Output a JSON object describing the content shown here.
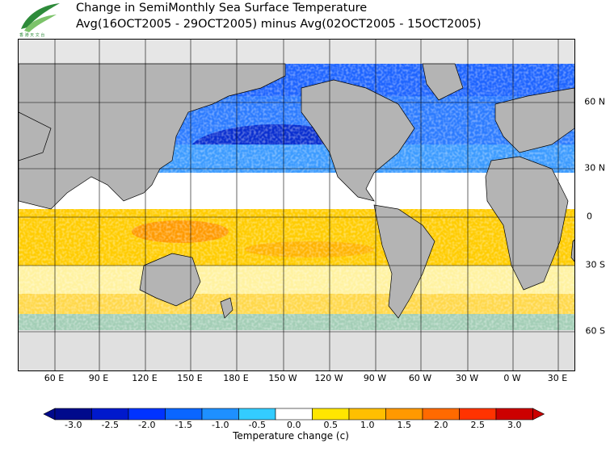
{
  "title_line1": "Change in SemiMonthly Sea Surface Temperature",
  "title_line2": "Avg(16OCT2005 - 29OCT2005) minus Avg(02OCT2005 - 15OCT2005)",
  "lon_ticks": [
    "60 E",
    "90 E",
    "120 E",
    "150 E",
    "180 E",
    "150 W",
    "120 W",
    "90 W",
    "60 W",
    "30 W",
    "0 W",
    "30 E"
  ],
  "lat_ticks": [
    "60 N",
    "30 N",
    "0",
    "30 S",
    "60 S"
  ],
  "colorbar": {
    "title": "Temperature change  (c)",
    "labels": [
      "-3.0",
      "-2.5",
      "-2.0",
      "-1.5",
      "-1.0",
      "-0.5",
      "0.0",
      "0.5",
      "1.0",
      "1.5",
      "2.0",
      "2.5",
      "3.0"
    ],
    "colors": [
      "#000a8c",
      "#0019cc",
      "#0033ff",
      "#0a66ff",
      "#1e90ff",
      "#33ccff",
      "#ffffff",
      "#ffe600",
      "#ffbf00",
      "#ff9900",
      "#ff6a00",
      "#ff3300",
      "#cc0000"
    ]
  },
  "colors": {
    "land": "#b4b4b4",
    "ice": "#e0e0e0",
    "grid": "#000000"
  }
}
